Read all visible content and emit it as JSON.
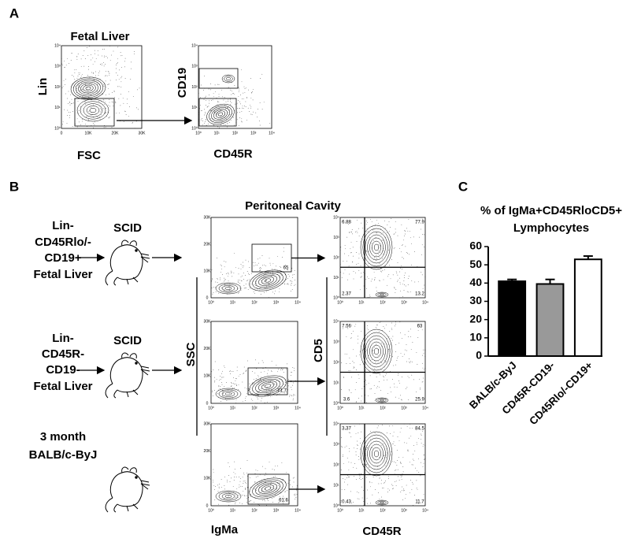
{
  "panel_labels": [
    "A",
    "B",
    "C"
  ],
  "panel_a": {
    "title": "Fetal Liver",
    "plots": [
      {
        "y_label": "Lin",
        "x_label": "FSC"
      },
      {
        "y_label": "CD19",
        "x_label": "CD45R"
      }
    ]
  },
  "panel_b": {
    "title": "Peritoneal Cavity",
    "rows": [
      {
        "donor": [
          "Lin-",
          "CD45Rlo/-",
          "CD19+",
          "Fetal Liver"
        ],
        "recipient": "SCID",
        "gate": 65,
        "quadrants": [
          6.88,
          77.9,
          2.37,
          13.2
        ]
      },
      {
        "donor": [
          "Lin-",
          "CD45R-",
          "CD19-",
          "Fetal Liver"
        ],
        "recipient": "SCID",
        "gate": 71.7,
        "quadrants": [
          7.56,
          63,
          3.6,
          25.9
        ]
      },
      {
        "donor": [
          "3 month",
          "BALB/c-ByJ"
        ],
        "gate": 61.6,
        "quadrants": [
          3.37,
          84.5,
          0.43,
          11.7
        ]
      }
    ],
    "left_y_label": "SSC",
    "left_x_label": "IgMa",
    "right_y_label": "CD5",
    "right_x_label": "CD45R"
  },
  "axis_tick_labels": {
    "log": [
      "10⁰",
      "10¹",
      "10²",
      "10³",
      "10⁴"
    ],
    "linear": [
      "0",
      "10K",
      "20K",
      "30K"
    ]
  },
  "chart_data": {
    "type": "bar",
    "title": [
      "% of IgMa+CD45RloCD5+",
      "Lymphocytes"
    ],
    "categories": [
      "BALB/c-ByJ",
      "CD45R-CD19-",
      "CD45Rlo/-CD19+"
    ],
    "values": [
      41,
      39.5,
      53
    ],
    "errors": [
      1,
      2.5,
      1.8
    ],
    "colors": [
      "#000000",
      "#999999",
      "#ffffff"
    ],
    "ylim": [
      0,
      60
    ],
    "yticks": [
      0,
      10,
      20,
      30,
      40,
      50,
      60
    ]
  }
}
